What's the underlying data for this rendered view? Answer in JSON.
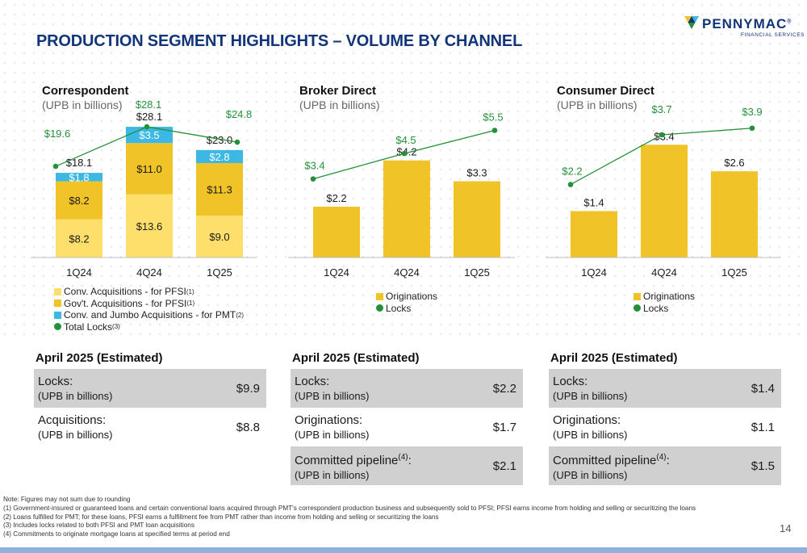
{
  "page": {
    "title": "PRODUCTION SEGMENT HIGHLIGHTS – VOLUME BY CHANNEL",
    "page_number": "14"
  },
  "logo": {
    "name": "PENNYMAC",
    "registered": "®",
    "subtitle": "FINANCIAL SERVICES"
  },
  "colors": {
    "light_gold": "#fedf6c",
    "gold": "#f0c428",
    "cyan": "#3db8e4",
    "green": "#249139",
    "navy": "#12357a"
  },
  "chart_data": [
    {
      "type": "bar",
      "stacked": true,
      "title": "Correspondent",
      "subtitle": "(UPB in billions)",
      "categories": [
        "1Q24",
        "4Q24",
        "1Q25"
      ],
      "series": [
        {
          "name": "Conv. Acquisitions - for PFSI",
          "footnote": "(1)",
          "values": [
            8.2,
            13.6,
            9.0
          ],
          "labels": [
            "$8.2",
            "$13.6",
            "$9.0"
          ],
          "color": "#fedf6c"
        },
        {
          "name": "Gov't. Acquisitions - for PFSI",
          "footnote": "(1)",
          "values": [
            8.2,
            11.0,
            11.3
          ],
          "labels": [
            "$8.2",
            "$11.0",
            "$11.3"
          ],
          "color": "#f0c428"
        },
        {
          "name": "Conv. and Jumbo Acquisitions - for PMT",
          "footnote": "(2)",
          "values": [
            1.8,
            3.5,
            2.8
          ],
          "labels": [
            "$1.8",
            "$3.5",
            "$2.8"
          ],
          "color": "#3db8e4"
        }
      ],
      "totals": [
        "$18.1",
        "$28.1",
        "$23.0"
      ],
      "line": {
        "name": "Total Locks",
        "footnote": "(3)",
        "values": [
          19.6,
          28.1,
          24.8
        ],
        "labels": [
          "$19.6",
          "$28.1",
          "$24.8"
        ],
        "color": "#249139"
      },
      "ylim": [
        0,
        38
      ]
    },
    {
      "type": "bar",
      "title": "Broker Direct",
      "subtitle": "(UPB in billions)",
      "categories": [
        "1Q24",
        "4Q24",
        "1Q25"
      ],
      "series": [
        {
          "name": "Originations",
          "values": [
            2.2,
            4.2,
            3.3
          ],
          "labels": [
            "$2.2",
            "$4.2",
            "$3.3"
          ],
          "color": "#f0c428"
        }
      ],
      "line": {
        "name": "Locks",
        "values": [
          3.4,
          4.5,
          5.5
        ],
        "labels": [
          "$3.4",
          "$4.5",
          "$5.5"
        ],
        "color": "#249139"
      },
      "ylim": [
        0,
        6.6
      ]
    },
    {
      "type": "bar",
      "title": "Consumer Direct",
      "subtitle": "(UPB in billions)",
      "categories": [
        "1Q24",
        "4Q24",
        "1Q25"
      ],
      "series": [
        {
          "name": "Originations",
          "values": [
            1.4,
            3.4,
            2.6
          ],
          "labels": [
            "$1.4",
            "$3.4",
            "$2.6"
          ],
          "color": "#f0c428"
        }
      ],
      "line": {
        "name": "Locks",
        "values": [
          2.2,
          3.7,
          3.9
        ],
        "labels": [
          "$2.2",
          "$3.7",
          "$3.9"
        ],
        "color": "#249139"
      },
      "ylim": [
        0,
        4.6
      ]
    }
  ],
  "estimates": [
    {
      "title": "April 2025 (Estimated)",
      "rows": [
        {
          "label": "Locks:",
          "sub": "(UPB in billions)",
          "value": "$9.9"
        },
        {
          "label": "Acquisitions:",
          "sub": "(UPB in billions)",
          "value": "$8.8"
        }
      ]
    },
    {
      "title": "April 2025 (Estimated)",
      "rows": [
        {
          "label": "Locks:",
          "sub": "(UPB in billions)",
          "value": "$2.2"
        },
        {
          "label": "Originations:",
          "sub": "(UPB in billions)",
          "value": "$1.7"
        },
        {
          "label": "Committed pipeline",
          "sup": "(4)",
          "suffix": ":",
          "sub": "(UPB in billions)",
          "value": "$2.1"
        }
      ]
    },
    {
      "title": "April 2025 (Estimated)",
      "rows": [
        {
          "label": "Locks:",
          "sub": "(UPB in billions)",
          "value": "$1.4"
        },
        {
          "label": "Originations:",
          "sub": "(UPB in billions)",
          "value": "$1.1"
        },
        {
          "label": "Committed pipeline",
          "sup": "(4)",
          "suffix": ":",
          "sub": "(UPB in billions)",
          "value": "$1.5"
        }
      ]
    }
  ],
  "notes": [
    "Note: Figures may not sum due to rounding",
    "(1) Government-insured or guaranteed loans and certain conventional loans acquired through PMT's correspondent production business and subsequently sold to PFSI; PFSI earns income from holding and selling or securitizing the loans",
    "(2) Loans fulfilled for PMT; for these loans, PFSI earns a fulfillment fee from PMT rather than income from holding and selling or securitizing the loans",
    "(3) Includes locks related to both PFSI and PMT loan acquisitions",
    "(4) Commitments to originate mortgage loans at specified terms at period end"
  ]
}
